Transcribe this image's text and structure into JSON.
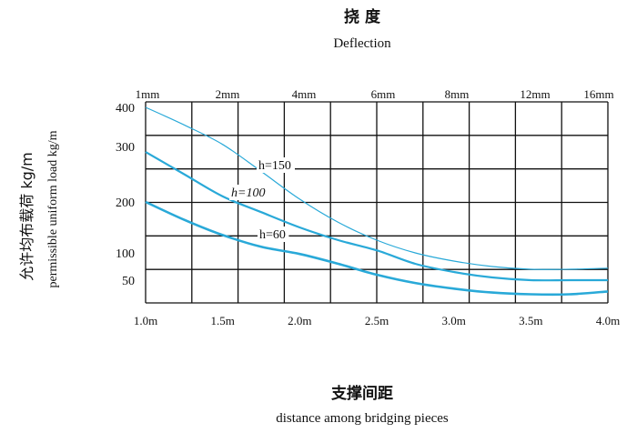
{
  "chart_data": {
    "type": "line",
    "title_cn": "挠 度",
    "title_en": "Deflection",
    "xlabel_cn": "支撑间距",
    "xlabel_en": "distance among bridging pieces",
    "ylabel_cn": "允许均布载荷 kg/m",
    "ylabel_en": "permissible uniform load kg/m",
    "x_ticks": [
      "1.0m",
      "1.5m",
      "2.0m",
      "2.5m",
      "3.0m",
      "3.5m",
      "4.0m"
    ],
    "top_ticks": [
      "1mm",
      "2mm",
      "4mm",
      "6mm",
      "8mm",
      "12mm",
      "16mm"
    ],
    "y_ticks": [
      "400",
      "300",
      "200",
      "100",
      "50"
    ],
    "xlim": [
      1.0,
      4.0
    ],
    "grid": true,
    "line_color": "#29a9d8",
    "series": [
      {
        "name": "h=150",
        "x": [
          1.0,
          1.25,
          1.5,
          1.75,
          2.0,
          2.25,
          2.5,
          2.75,
          3.0,
          3.25,
          3.5,
          3.75,
          4.0
        ],
        "y": [
          400,
          355,
          305,
          255,
          205,
          160,
          125,
          100,
          85,
          75,
          70,
          70,
          72
        ]
      },
      {
        "name": "h=100",
        "x": [
          1.0,
          1.25,
          1.5,
          1.75,
          2.0,
          2.25,
          2.5,
          2.75,
          3.0,
          3.25,
          3.5,
          3.75,
          4.0
        ],
        "y": [
          290,
          250,
          210,
          180,
          150,
          125,
          105,
          80,
          65,
          55,
          50,
          50,
          50
        ]
      },
      {
        "name": "h=60",
        "x": [
          1.0,
          1.25,
          1.5,
          1.75,
          2.0,
          2.25,
          2.5,
          2.75,
          3.0,
          3.25,
          3.5,
          3.75,
          4.0
        ],
        "y": [
          200,
          165,
          135,
          112,
          98,
          80,
          60,
          45,
          35,
          28,
          25,
          25,
          30
        ]
      }
    ]
  }
}
